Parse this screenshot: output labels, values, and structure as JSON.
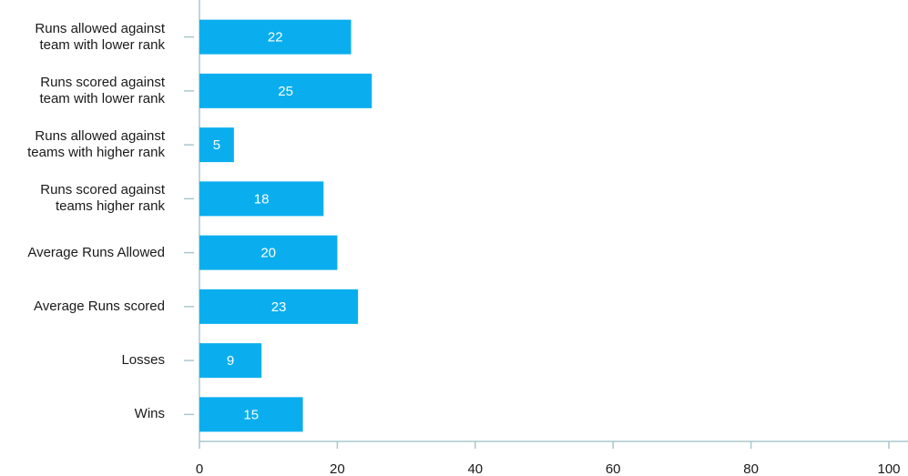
{
  "chart_data": {
    "type": "hbar",
    "categories": [
      "Runs allowed against team with lower rank",
      "Runs scored against team with lower rank",
      "Runs allowed against teams with higher rank",
      "Runs scored against teams higher rank",
      "Average Runs Allowed",
      "Average Runs scored",
      "Losses",
      "Wins"
    ],
    "values": [
      22,
      25,
      5,
      18,
      20,
      23,
      9,
      15
    ],
    "color": "#0aaeef",
    "xlim": [
      0,
      100
    ],
    "xticks": [
      0,
      20,
      40,
      60,
      80,
      100
    ],
    "grid": false
  }
}
